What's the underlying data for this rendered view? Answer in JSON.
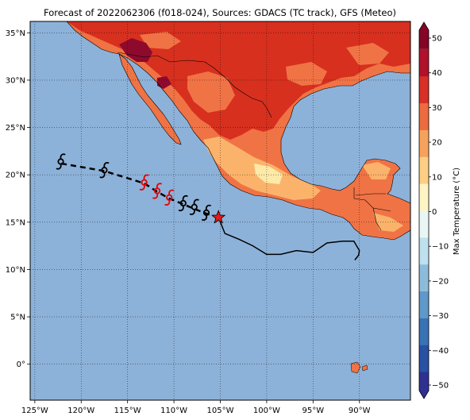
{
  "title": "Forecast of 2022062306 (f018-024), Sources: GDACS (TC track), GFS (Meteo)",
  "map": {
    "lon_range": [
      -125.5,
      -84.5
    ],
    "lat_range": [
      -3.8,
      36.2
    ],
    "lon_ticks": [
      {
        "value": -125,
        "label": "125°W"
      },
      {
        "value": -120,
        "label": "120°W"
      },
      {
        "value": -115,
        "label": "115°W"
      },
      {
        "value": -110,
        "label": "110°W"
      },
      {
        "value": -105,
        "label": "105°W"
      },
      {
        "value": -100,
        "label": "100°W"
      },
      {
        "value": -95,
        "label": "95°W"
      },
      {
        "value": -90,
        "label": "90°W"
      }
    ],
    "lat_ticks": [
      {
        "value": 35,
        "label": "35°N"
      },
      {
        "value": 30,
        "label": "30°N"
      },
      {
        "value": 25,
        "label": "25°N"
      },
      {
        "value": 20,
        "label": "20°N"
      },
      {
        "value": 15,
        "label": "15°N"
      },
      {
        "value": 10,
        "label": "10°N"
      },
      {
        "value": 5,
        "label": "5°N"
      },
      {
        "value": 0,
        "label": "0°"
      }
    ],
    "grid": true,
    "ocean_color": "#8db2d9"
  },
  "colorbar": {
    "label": "Max Temperature (°C)",
    "ticks": [
      "50",
      "40",
      "30",
      "20",
      "10",
      "0",
      "−10",
      "−20",
      "−30",
      "−40",
      "−50"
    ],
    "bands": [
      "#2e3192",
      "#2851a3",
      "#3a72b6",
      "#5f98c9",
      "#8dbcdb",
      "#bfe0ee",
      "#e9f6f3",
      "#fff4c4",
      "#fdce84",
      "#f7a25c",
      "#ec6b3f",
      "#d73027",
      "#b0122b",
      "#840526"
    ]
  },
  "track": {
    "observed": [
      {
        "lon": -105.2,
        "lat": 15.5
      },
      {
        "lon": -104.5,
        "lat": 13.8
      },
      {
        "lon": -103.0,
        "lat": 13.2
      },
      {
        "lon": -101.5,
        "lat": 12.5
      },
      {
        "lon": -100.0,
        "lat": 11.6
      },
      {
        "lon": -98.5,
        "lat": 11.6
      },
      {
        "lon": -96.8,
        "lat": 12.0
      },
      {
        "lon": -95.0,
        "lat": 11.8
      },
      {
        "lon": -93.5,
        "lat": 12.8
      },
      {
        "lon": -91.8,
        "lat": 13.0
      },
      {
        "lon": -90.6,
        "lat": 13.0
      },
      {
        "lon": -90.0,
        "lat": 12.0
      },
      {
        "lon": -90.1,
        "lat": 11.5
      },
      {
        "lon": -90.5,
        "lat": 11.0
      }
    ],
    "forecast": [
      {
        "lon": -105.2,
        "lat": 15.5
      },
      {
        "lon": -106.5,
        "lat": 15.9
      },
      {
        "lon": -107.8,
        "lat": 16.4
      },
      {
        "lon": -109.0,
        "lat": 16.9
      },
      {
        "lon": -110.5,
        "lat": 17.5
      },
      {
        "lon": -111.8,
        "lat": 18.2
      },
      {
        "lon": -113.2,
        "lat": 19.1
      },
      {
        "lon": -117.5,
        "lat": 20.4
      },
      {
        "lon": -122.2,
        "lat": 21.2
      }
    ],
    "current_position": {
      "lon": -105.2,
      "lat": 15.5
    },
    "symbols": [
      {
        "lon": -106.5,
        "lat": 16.0,
        "color": "#000000"
      },
      {
        "lon": -107.8,
        "lat": 16.6,
        "color": "#000000"
      },
      {
        "lon": -109.0,
        "lat": 17.0,
        "color": "#000000"
      },
      {
        "lon": -110.5,
        "lat": 17.6,
        "color": "#e60000"
      },
      {
        "lon": -111.8,
        "lat": 18.3,
        "color": "#e60000"
      },
      {
        "lon": -113.2,
        "lat": 19.2,
        "color": "#e60000"
      },
      {
        "lon": -117.5,
        "lat": 20.5,
        "color": "#000000"
      },
      {
        "lon": -122.2,
        "lat": 21.4,
        "color": "#000000"
      }
    ]
  }
}
